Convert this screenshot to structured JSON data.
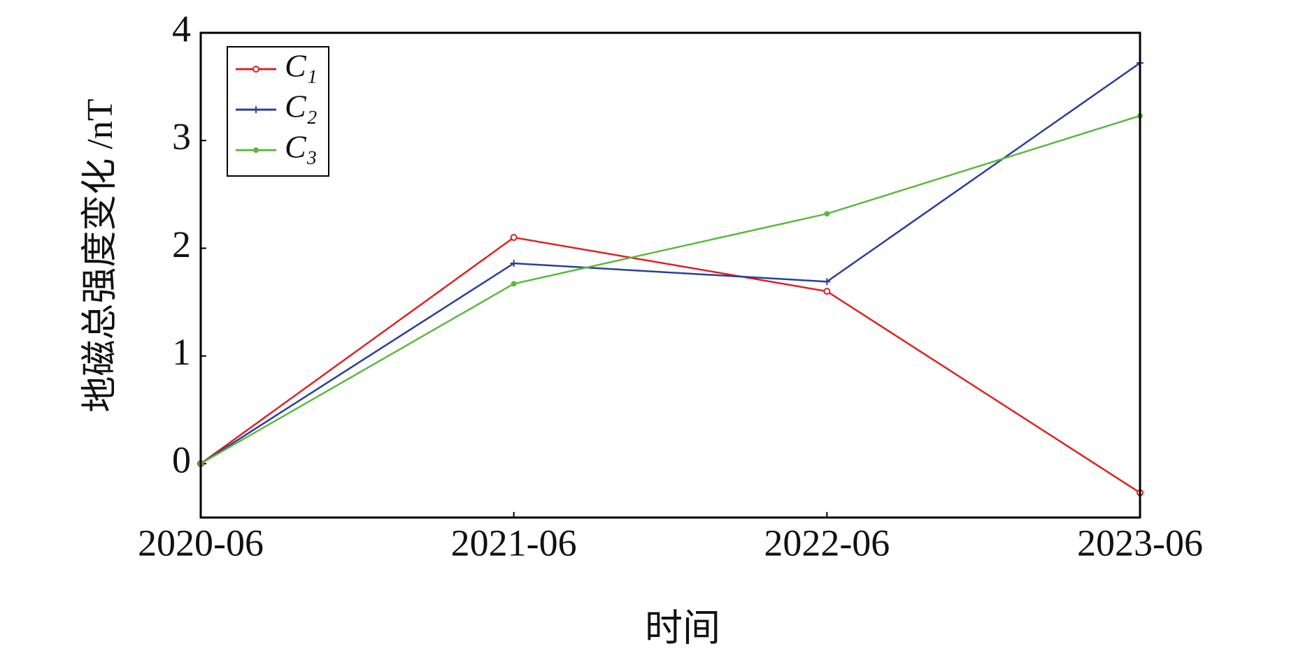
{
  "chart_data": {
    "type": "line",
    "x_label": "时间",
    "y_label": "地磁总强度变化 /nT",
    "categories": [
      "2020-06",
      "2021-06",
      "2022-06",
      "2023-06"
    ],
    "series": [
      {
        "name": "C₁",
        "color": "#e02020",
        "marker": "open-circle",
        "values": [
          0,
          2.1,
          1.6,
          -0.27
        ]
      },
      {
        "name": "C₂",
        "color": "#2a3f9a",
        "marker": "plus",
        "values": [
          0,
          1.86,
          1.69,
          3.72
        ]
      },
      {
        "name": "C₃",
        "color": "#5cb840",
        "marker": "dot",
        "values": [
          0,
          1.67,
          2.32,
          3.23
        ]
      }
    ],
    "ylim": [
      -0.5,
      4
    ],
    "yticks": [
      0,
      1,
      2,
      3,
      4
    ],
    "legend": "upper-left"
  }
}
